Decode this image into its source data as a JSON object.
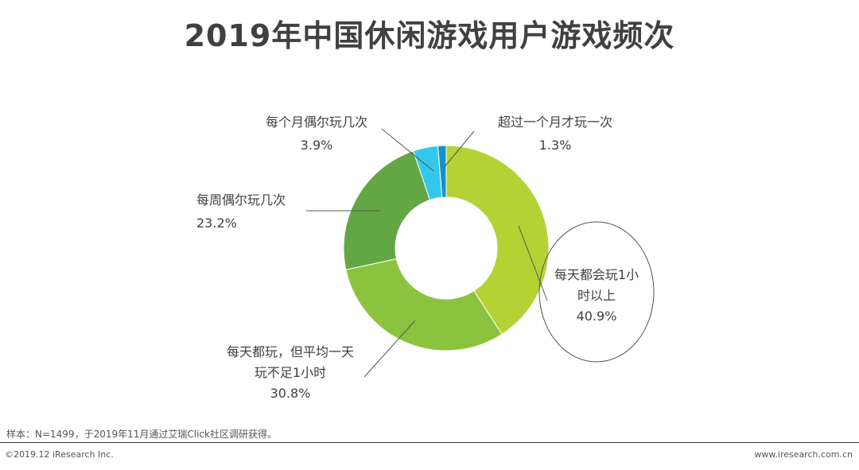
{
  "title": "2019年中国休闲游戏用户游戏频次",
  "chart_data": {
    "type": "pie",
    "title": "2019年中国休闲游戏用户游戏频次",
    "donut": true,
    "unit": "%",
    "slices": [
      {
        "label": "每天都会玩1小时以上",
        "label_lines": [
          "每天都会玩1小",
          "时以上"
        ],
        "value": 40.9,
        "value_text": "40.9%",
        "color": "#B5D234"
      },
      {
        "label": "每天都玩，但平均一天玩不足1小时",
        "label_lines": [
          "每天都玩，但平均一天",
          "玩不足1小时"
        ],
        "value": 30.8,
        "value_text": "30.8%",
        "color": "#8BC33F"
      },
      {
        "label": "每周偶尔玩几次",
        "label_lines": [
          "每周偶尔玩几次"
        ],
        "value": 23.2,
        "value_text": "23.2%",
        "color": "#63A744"
      },
      {
        "label": "每个月偶尔玩几次",
        "label_lines": [
          "每个月偶尔玩几次"
        ],
        "value": 3.9,
        "value_text": "3.9%",
        "color": "#33C8EA"
      },
      {
        "label": "超过一个月才玩一次",
        "label_lines": [
          "超过一个月才玩一次"
        ],
        "value": 1.3,
        "value_text": "1.3%",
        "color": "#1592C9"
      }
    ],
    "highlight": "每天都会玩1小时以上"
  },
  "footer": {
    "note": "样本：N=1499，于2019年11月通过艾瑞Click社区调研获得。",
    "copyright": "©2019.12 iResearch Inc.",
    "website": "www.iresearch.com.cn"
  }
}
